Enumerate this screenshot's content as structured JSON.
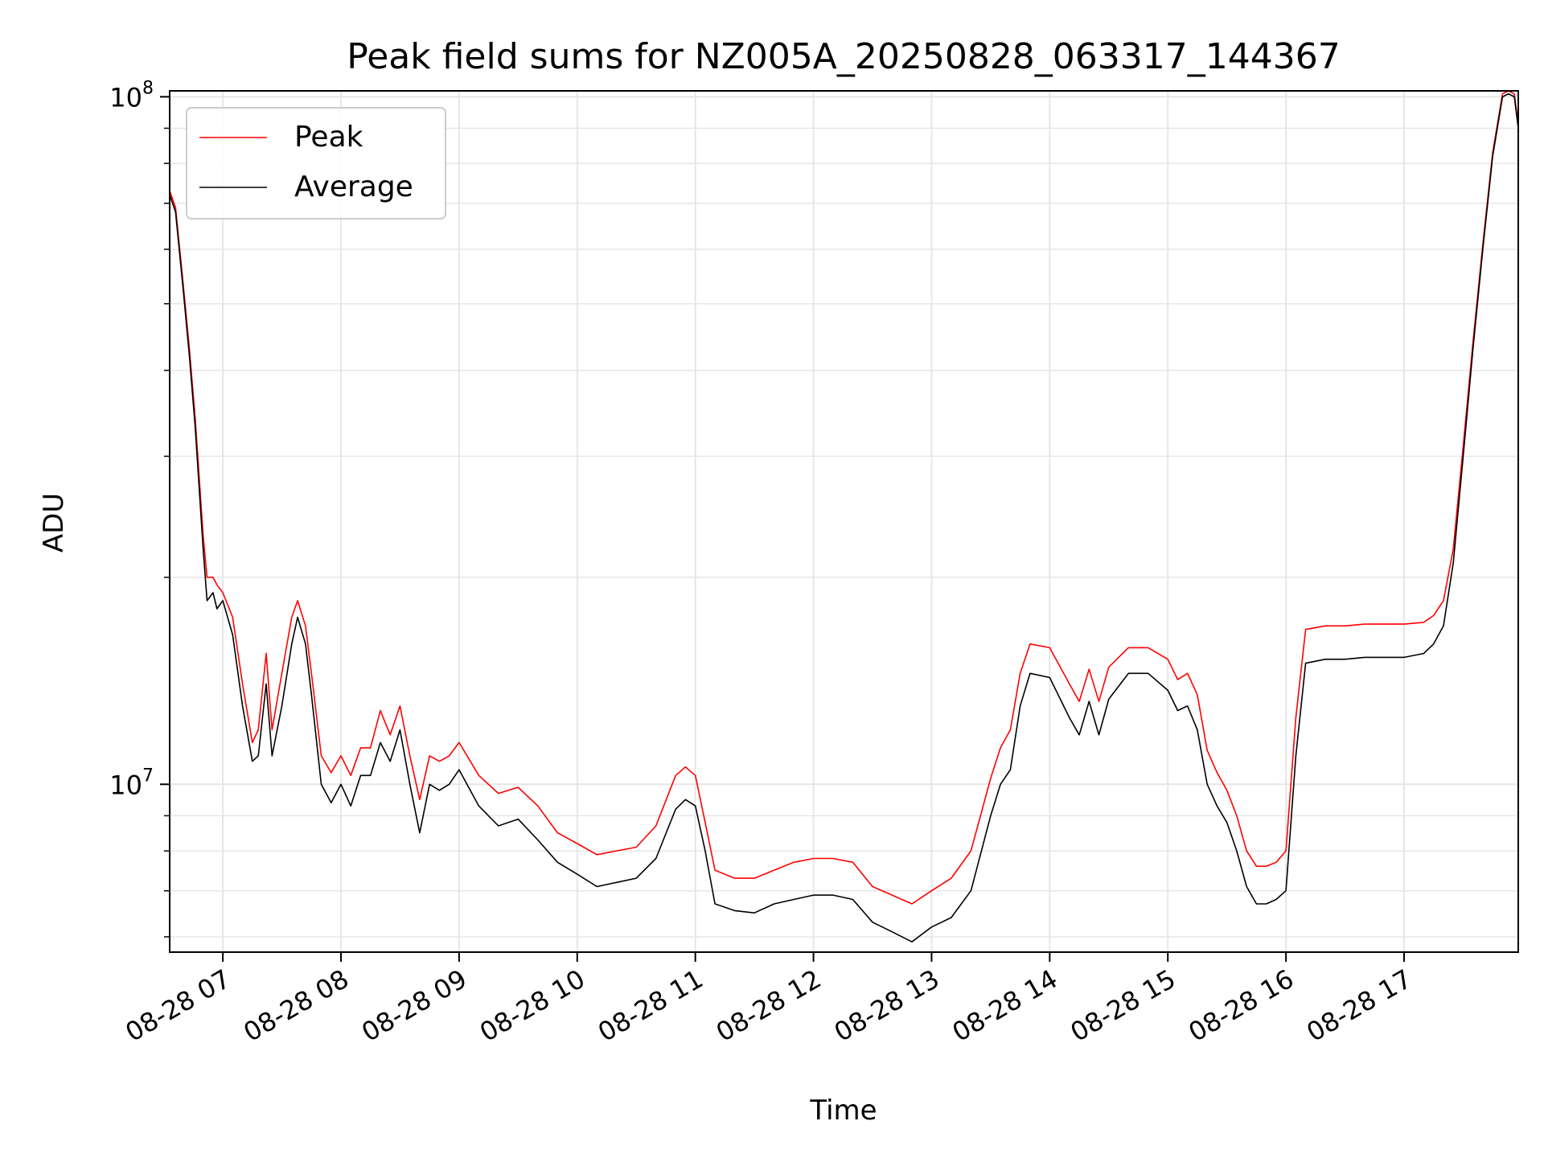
{
  "chart_data": {
    "type": "line",
    "title": "Peak field sums for NZ005A_20250828_063317_144367",
    "xlabel": "Time",
    "ylabel": "ADU",
    "yscale": "log",
    "ylim": [
      5700000,
      102000000
    ],
    "xlim": [
      "2025-08-28 06:33",
      "2025-08-28 17:58"
    ],
    "grid": true,
    "legend_position": "top-left",
    "x_ticks": [
      {
        "value": "2025-08-28 07:00",
        "label": "08-28 07"
      },
      {
        "value": "2025-08-28 08:00",
        "label": "08-28 08"
      },
      {
        "value": "2025-08-28 09:00",
        "label": "08-28 09"
      },
      {
        "value": "2025-08-28 10:00",
        "label": "08-28 10"
      },
      {
        "value": "2025-08-28 11:00",
        "label": "08-28 11"
      },
      {
        "value": "2025-08-28 12:00",
        "label": "08-28 12"
      },
      {
        "value": "2025-08-28 13:00",
        "label": "08-28 13"
      },
      {
        "value": "2025-08-28 14:00",
        "label": "08-28 14"
      },
      {
        "value": "2025-08-28 15:00",
        "label": "08-28 15"
      },
      {
        "value": "2025-08-28 16:00",
        "label": "08-28 16"
      },
      {
        "value": "2025-08-28 17:00",
        "label": "08-28 17"
      }
    ],
    "y_ticks": [
      {
        "value": 10000000,
        "base": "10",
        "exp": "7"
      },
      {
        "value": 100000000,
        "base": "10",
        "exp": "8"
      }
    ],
    "x": [
      "2025-08-28 06:33",
      "2025-08-28 06:36",
      "2025-08-28 06:40",
      "2025-08-28 06:43",
      "2025-08-28 06:46",
      "2025-08-28 06:50",
      "2025-08-28 06:52",
      "2025-08-28 06:55",
      "2025-08-28 06:57",
      "2025-08-28 07:00",
      "2025-08-28 07:05",
      "2025-08-28 07:10",
      "2025-08-28 07:15",
      "2025-08-28 07:18",
      "2025-08-28 07:22",
      "2025-08-28 07:25",
      "2025-08-28 07:30",
      "2025-08-28 07:35",
      "2025-08-28 07:38",
      "2025-08-28 07:42",
      "2025-08-28 07:45",
      "2025-08-28 07:50",
      "2025-08-28 07:55",
      "2025-08-28 08:00",
      "2025-08-28 08:05",
      "2025-08-28 08:10",
      "2025-08-28 08:15",
      "2025-08-28 08:20",
      "2025-08-28 08:25",
      "2025-08-28 08:30",
      "2025-08-28 08:35",
      "2025-08-28 08:40",
      "2025-08-28 08:45",
      "2025-08-28 08:50",
      "2025-08-28 08:55",
      "2025-08-28 09:00",
      "2025-08-28 09:10",
      "2025-08-28 09:20",
      "2025-08-28 09:30",
      "2025-08-28 09:40",
      "2025-08-28 09:50",
      "2025-08-28 10:00",
      "2025-08-28 10:10",
      "2025-08-28 10:20",
      "2025-08-28 10:30",
      "2025-08-28 10:40",
      "2025-08-28 10:50",
      "2025-08-28 10:55",
      "2025-08-28 11:00",
      "2025-08-28 11:05",
      "2025-08-28 11:10",
      "2025-08-28 11:20",
      "2025-08-28 11:30",
      "2025-08-28 11:40",
      "2025-08-28 11:50",
      "2025-08-28 12:00",
      "2025-08-28 12:10",
      "2025-08-28 12:20",
      "2025-08-28 12:30",
      "2025-08-28 12:40",
      "2025-08-28 12:50",
      "2025-08-28 13:00",
      "2025-08-28 13:10",
      "2025-08-28 13:20",
      "2025-08-28 13:30",
      "2025-08-28 13:35",
      "2025-08-28 13:40",
      "2025-08-28 13:45",
      "2025-08-28 13:50",
      "2025-08-28 14:00",
      "2025-08-28 14:10",
      "2025-08-28 14:15",
      "2025-08-28 14:20",
      "2025-08-28 14:25",
      "2025-08-28 14:30",
      "2025-08-28 14:40",
      "2025-08-28 14:50",
      "2025-08-28 15:00",
      "2025-08-28 15:05",
      "2025-08-28 15:10",
      "2025-08-28 15:15",
      "2025-08-28 15:20",
      "2025-08-28 15:25",
      "2025-08-28 15:30",
      "2025-08-28 15:35",
      "2025-08-28 15:40",
      "2025-08-28 15:45",
      "2025-08-28 15:50",
      "2025-08-28 15:55",
      "2025-08-28 16:00",
      "2025-08-28 16:05",
      "2025-08-28 16:10",
      "2025-08-28 16:20",
      "2025-08-28 16:30",
      "2025-08-28 16:40",
      "2025-08-28 16:50",
      "2025-08-28 17:00",
      "2025-08-28 17:10",
      "2025-08-28 17:15",
      "2025-08-28 17:20",
      "2025-08-28 17:25",
      "2025-08-28 17:30",
      "2025-08-28 17:35",
      "2025-08-28 17:40",
      "2025-08-28 17:45",
      "2025-08-28 17:50",
      "2025-08-28 17:53",
      "2025-08-28 17:56",
      "2025-08-28 17:58"
    ],
    "series": [
      {
        "name": "Average",
        "color": "#000000",
        "values": [
          72000000,
          68000000,
          52000000,
          42000000,
          33000000,
          22000000,
          18500000,
          19000000,
          18000000,
          18500000,
          16500000,
          13000000,
          10800000,
          11000000,
          14000000,
          11000000,
          13000000,
          16000000,
          17500000,
          16000000,
          13500000,
          10000000,
          9400000,
          10000000,
          9300000,
          10300000,
          10300000,
          11500000,
          10800000,
          12000000,
          10000000,
          8500000,
          10000000,
          9800000,
          10000000,
          10500000,
          9300000,
          8700000,
          8900000,
          8300000,
          7700000,
          7400000,
          7100000,
          7200000,
          7300000,
          7800000,
          9200000,
          9500000,
          9300000,
          8000000,
          6700000,
          6550000,
          6500000,
          6700000,
          6800000,
          6900000,
          6900000,
          6800000,
          6300000,
          6100000,
          5900000,
          6200000,
          6400000,
          7000000,
          9000000,
          10000000,
          10500000,
          13000000,
          14500000,
          14300000,
          12500000,
          11800000,
          13200000,
          11800000,
          13300000,
          14500000,
          14500000,
          13700000,
          12800000,
          13000000,
          12000000,
          10000000,
          9300000,
          8800000,
          8000000,
          7100000,
          6700000,
          6700000,
          6800000,
          7000000,
          11000000,
          15000000,
          15200000,
          15200000,
          15300000,
          15300000,
          15300000,
          15500000,
          16000000,
          17000000,
          21000000,
          30000000,
          43000000,
          60000000,
          82000000,
          100000000,
          101000000,
          100000000,
          90000000
        ]
      },
      {
        "name": "Peak",
        "color": "#ff0000",
        "values": [
          73000000,
          69000000,
          53000000,
          43000000,
          34000000,
          23000000,
          20000000,
          20000000,
          19500000,
          19000000,
          17500000,
          14000000,
          11500000,
          12000000,
          15500000,
          12000000,
          14500000,
          17500000,
          18500000,
          17000000,
          14500000,
          11000000,
          10400000,
          11000000,
          10300000,
          11300000,
          11300000,
          12800000,
          11800000,
          13000000,
          11000000,
          9500000,
          11000000,
          10800000,
          11000000,
          11500000,
          10300000,
          9700000,
          9900000,
          9300000,
          8500000,
          8200000,
          7900000,
          8000000,
          8100000,
          8700000,
          10300000,
          10600000,
          10300000,
          8800000,
          7500000,
          7300000,
          7300000,
          7500000,
          7700000,
          7800000,
          7800000,
          7700000,
          7100000,
          6900000,
          6700000,
          7000000,
          7300000,
          8000000,
          10200000,
          11300000,
          12000000,
          14500000,
          16000000,
          15800000,
          14000000,
          13200000,
          14700000,
          13200000,
          14800000,
          15800000,
          15800000,
          15200000,
          14200000,
          14500000,
          13500000,
          11200000,
          10400000,
          9800000,
          9000000,
          8000000,
          7600000,
          7600000,
          7700000,
          8000000,
          12500000,
          16800000,
          17000000,
          17000000,
          17100000,
          17100000,
          17100000,
          17200000,
          17600000,
          18500000,
          22000000,
          31000000,
          44000000,
          61000000,
          83000000,
          101000000,
          102000000,
          101000000,
          91000000
        ]
      }
    ]
  }
}
